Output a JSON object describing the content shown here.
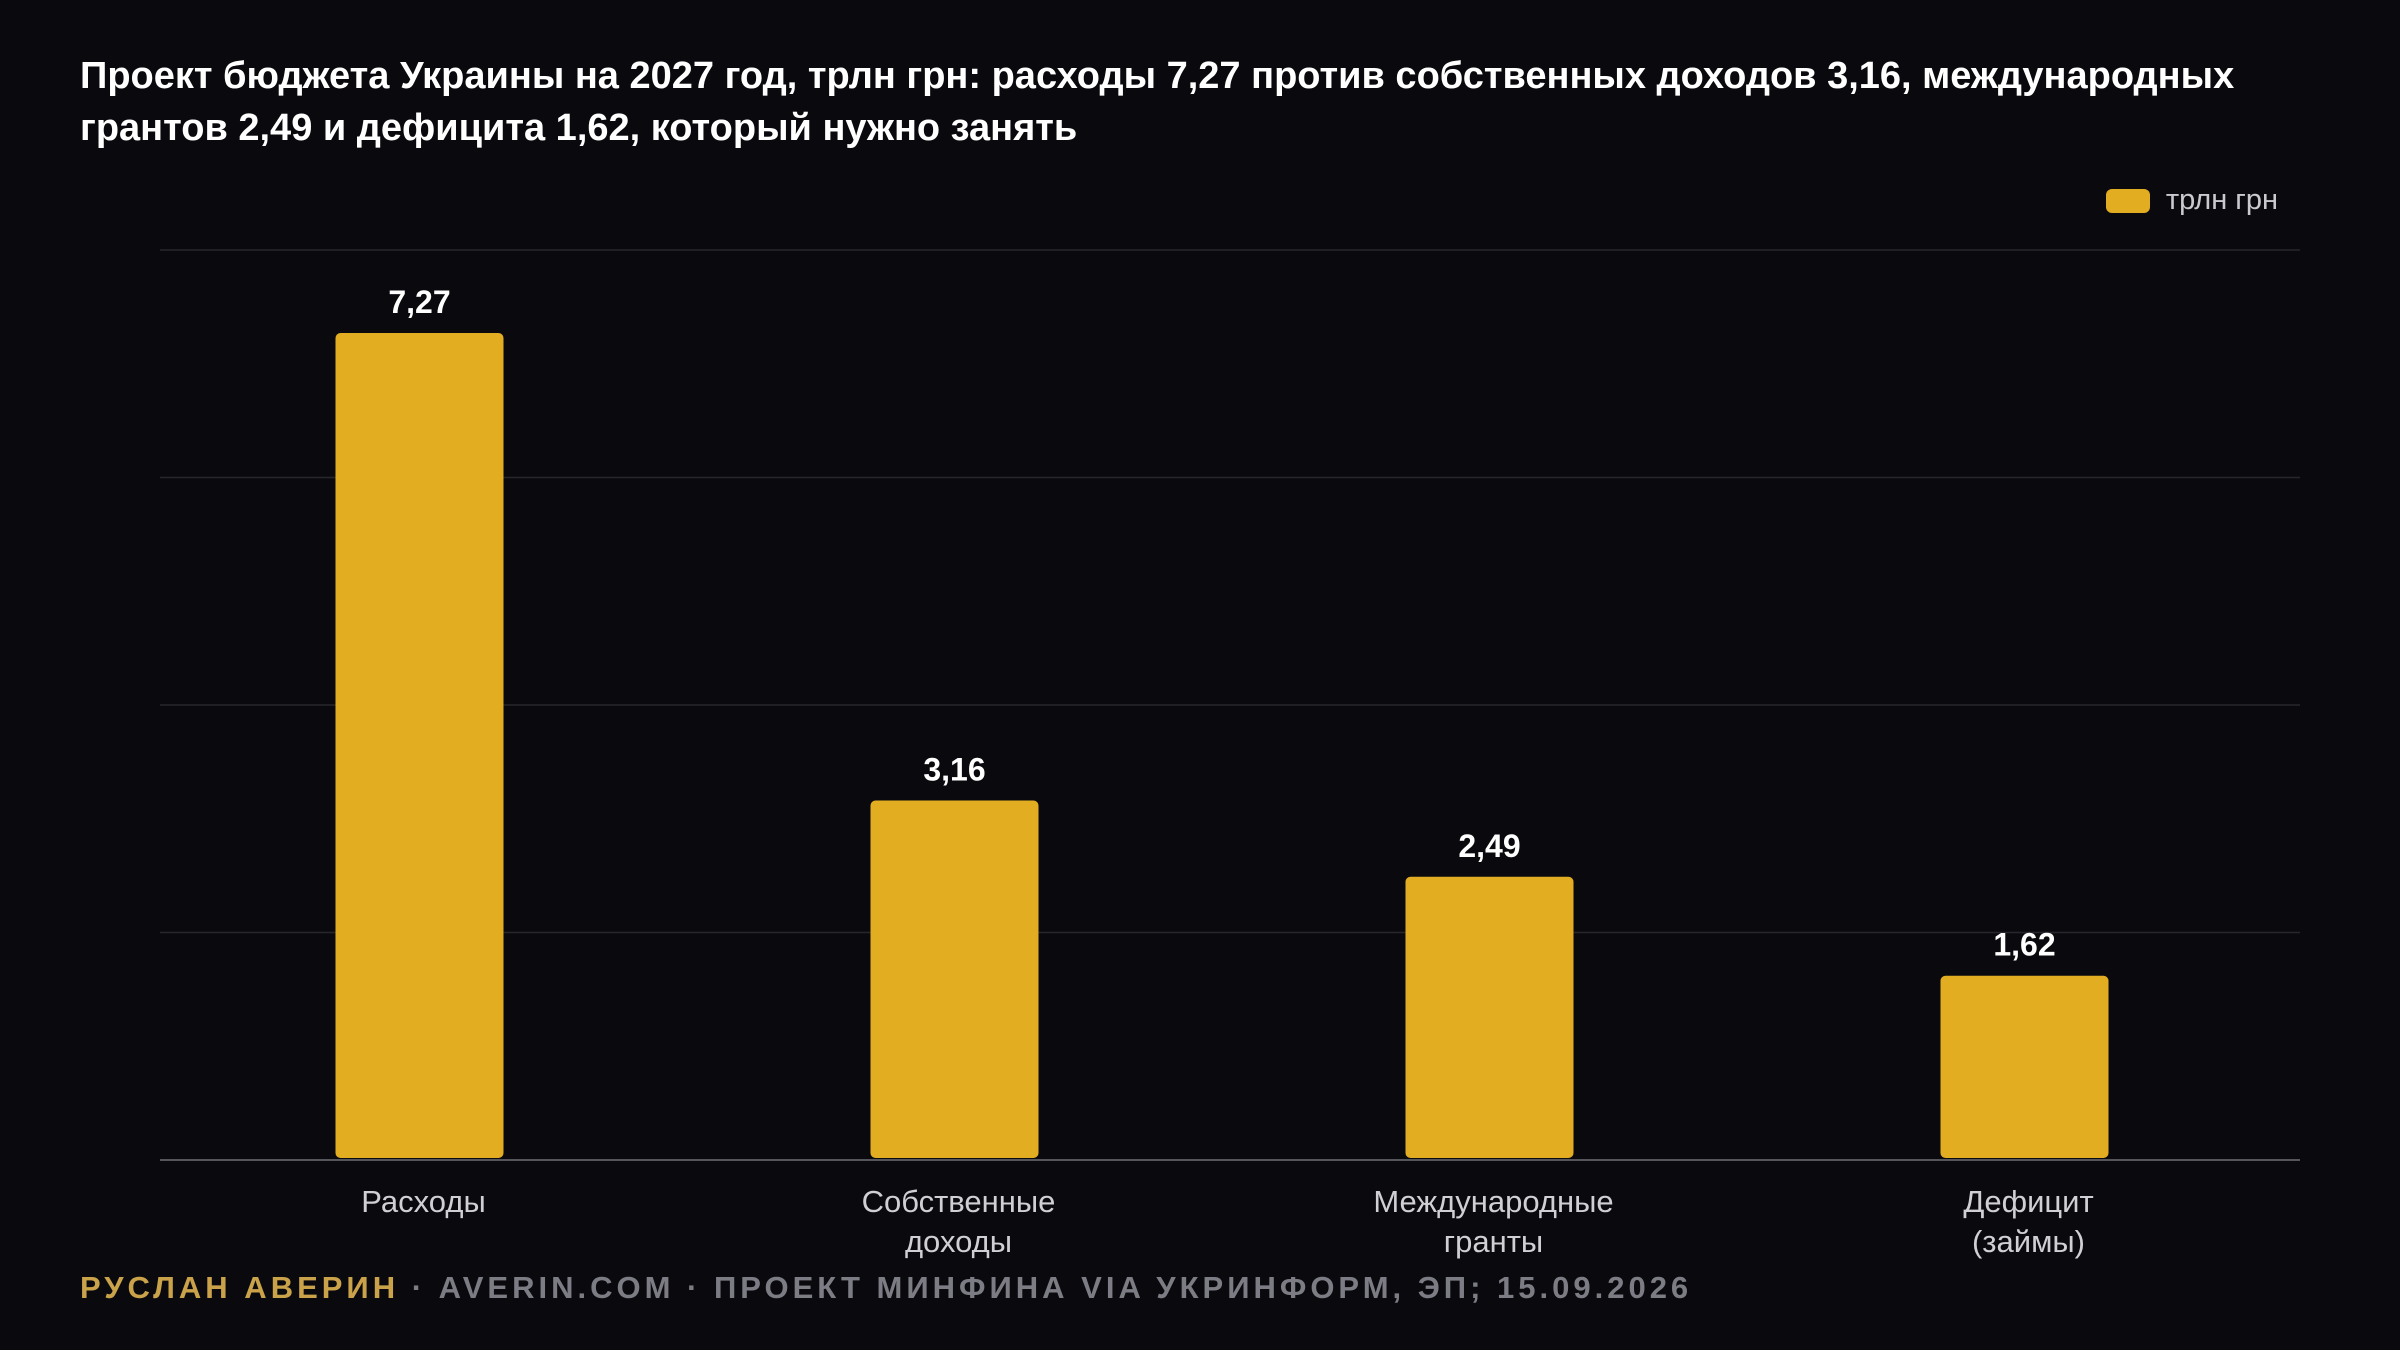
{
  "colors": {
    "background": "#0a0a0e",
    "bar": "#e3ad22",
    "grid": "#26262c",
    "axis": "#55555c"
  },
  "chart_data": {
    "type": "bar",
    "title": "Проект бюджета Украины на 2027 год, трлн грн: расходы 7,27 против собственных доходов 3,16, международных грантов 2,49 и дефицита 1,62, который нужно занять",
    "categories": [
      [
        "Расходы"
      ],
      [
        "Собственные",
        "доходы"
      ],
      [
        "Международные",
        "гранты"
      ],
      [
        "Дефицит",
        "(займы)"
      ]
    ],
    "series": [
      {
        "name": "трлн грн",
        "values": [
          7.27,
          3.16,
          2.49,
          1.62
        ],
        "labels": [
          "7,27",
          "3,16",
          "2,49",
          "1,62"
        ]
      }
    ],
    "ylim": [
      0,
      8
    ],
    "grid": true,
    "legend_position": "top-right",
    "xlabel": "",
    "ylabel": ""
  },
  "footer": {
    "author": "РУСЛАН АВЕРИН",
    "rest": " · AVERIN.COM · ПРОЕКТ МИНФИНА VIA УКРИНФОРМ, ЭП; 15.09.2026"
  }
}
